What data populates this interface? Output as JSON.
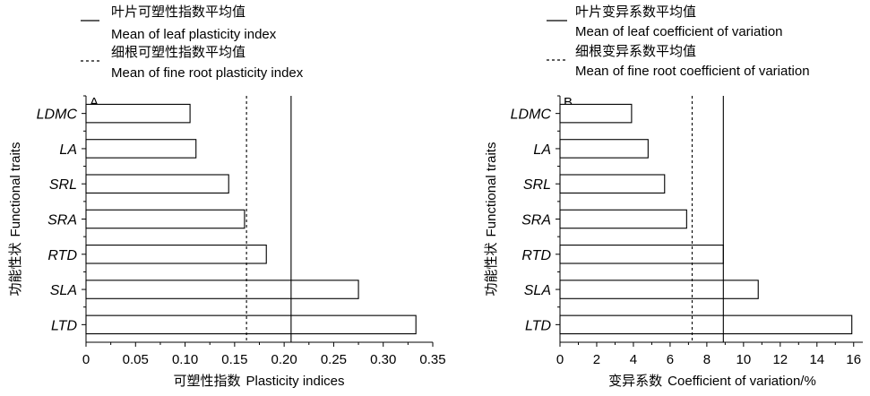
{
  "chart_data": [
    {
      "type": "bar",
      "orientation": "horizontal",
      "panel": "A",
      "categories": [
        "LDMC",
        "LA",
        "SRL",
        "SRA",
        "RTD",
        "SLA",
        "LTD"
      ],
      "values": [
        0.105,
        0.111,
        0.144,
        0.16,
        0.182,
        0.275,
        0.333
      ],
      "xlim": [
        0,
        0.35
      ],
      "xticks": [
        "0",
        "0.05",
        "0.10",
        "0.15",
        "0.20",
        "0.25",
        "0.30",
        "0.35"
      ],
      "xlabel_cn": "可塑性指数",
      "xlabel_en": "Plasticity indices",
      "ylabel_cn": "功能性状",
      "ylabel_en": "Functional traits",
      "reference_lines": [
        {
          "value": 0.207,
          "style": "solid"
        },
        {
          "value": 0.162,
          "style": "dashed"
        }
      ],
      "legend": [
        {
          "style": "solid",
          "cn": "叶片可塑性指数平均值",
          "en": "Mean of leaf plasticity index"
        },
        {
          "style": "dashed",
          "cn": "细根可塑性指数平均值",
          "en": "Mean of fine root plasticity index"
        }
      ]
    },
    {
      "type": "bar",
      "orientation": "horizontal",
      "panel": "B",
      "categories": [
        "LDMC",
        "LA",
        "SRL",
        "SRA",
        "RTD",
        "SLA",
        "LTD"
      ],
      "values": [
        3.9,
        4.8,
        5.7,
        6.9,
        8.9,
        10.8,
        15.9
      ],
      "xlim": [
        0,
        16.5
      ],
      "xticks": [
        "0",
        "2",
        "4",
        "6",
        "8",
        "10",
        "12",
        "14",
        "16"
      ],
      "xlabel_cn": "变异系数",
      "xlabel_en": "Coefficient of variation/%",
      "ylabel_cn": "功能性状",
      "ylabel_en": "Functional traits",
      "reference_lines": [
        {
          "value": 8.9,
          "style": "solid"
        },
        {
          "value": 7.2,
          "style": "dashed"
        }
      ],
      "legend": [
        {
          "style": "solid",
          "cn": "叶片变异系数平均值",
          "en": "Mean of leaf coefficient of variation"
        },
        {
          "style": "dashed",
          "cn": "细根变异系数平均值",
          "en": "Mean of fine root coefficient of variation"
        }
      ]
    }
  ]
}
